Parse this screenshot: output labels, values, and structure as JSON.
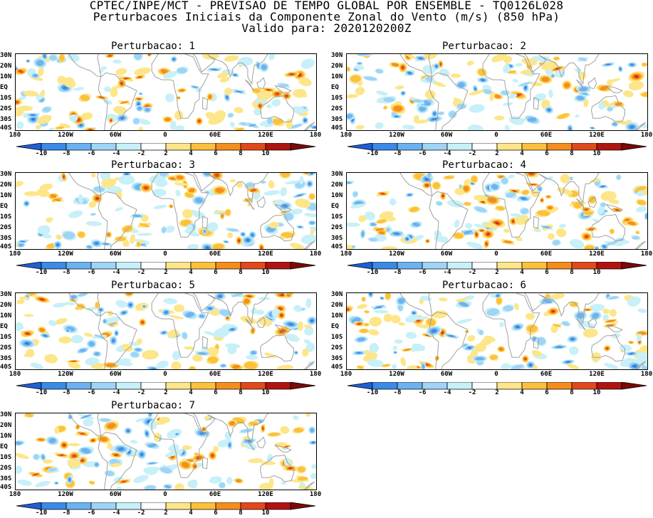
{
  "header": {
    "line1": "CPTEC/INPE/MCT - PREVISAO DE TEMPO GLOBAL POR ENSEMBLE - TQ0126L028",
    "line2": "Perturbacoes Iniciais da Componente Zonal do Vento (m/s) (850 hPa)",
    "line3": "Valido para: 2020120200Z"
  },
  "panels": [
    {
      "title": "Perturbacao: 1"
    },
    {
      "title": "Perturbacao: 2"
    },
    {
      "title": "Perturbacao: 3"
    },
    {
      "title": "Perturbacao: 4"
    },
    {
      "title": "Perturbacao: 5"
    },
    {
      "title": "Perturbacao: 6"
    },
    {
      "title": "Perturbacao: 7"
    }
  ],
  "axes": {
    "lat_labels": [
      "30N",
      "20N",
      "10N",
      "EQ",
      "10S",
      "20S",
      "30S",
      "40S"
    ],
    "lon_labels": [
      "180",
      "120W",
      "60W",
      "0",
      "60E",
      "120E",
      "180"
    ]
  },
  "colorbar": {
    "labels": [
      "-10",
      "-8",
      "-6",
      "-4",
      "-2",
      "2",
      "4",
      "6",
      "8",
      "10"
    ],
    "colors": [
      "#1f5fd6",
      "#3b8ae6",
      "#6cb2f0",
      "#9fd4f6",
      "#c8f0f8",
      "#ffffff",
      "#fde68a",
      "#fcc13c",
      "#f48d1e",
      "#e2491a",
      "#b01410",
      "#7a0a08"
    ]
  }
}
